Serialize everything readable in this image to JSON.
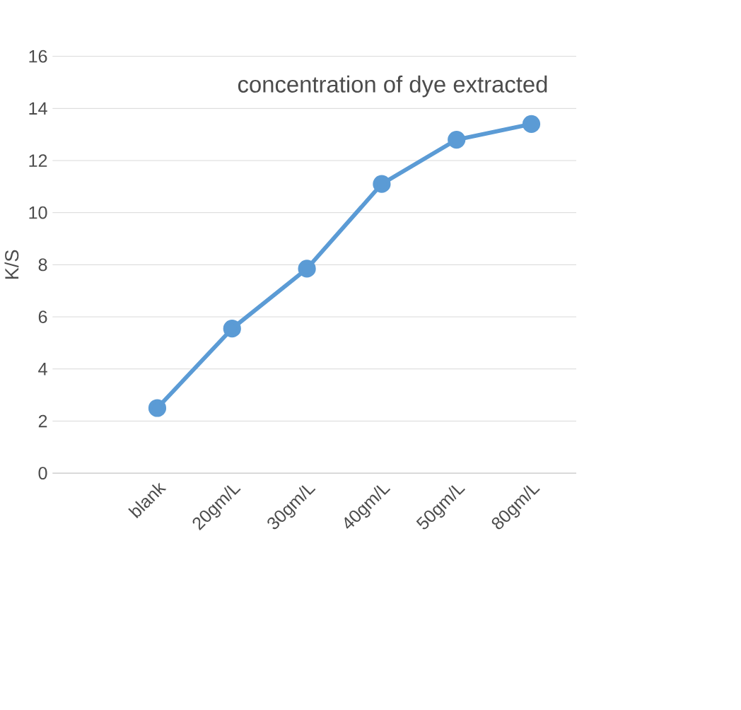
{
  "chart_data": {
    "type": "line",
    "title": "concentration of dye extracted",
    "ylabel": "K/S",
    "categories": [
      "blank",
      "20gm/L",
      "30gm/L",
      "40gm/L",
      "50gm/L",
      "80gm/L"
    ],
    "series": [
      {
        "color": "#5b9bd5",
        "values": [
          2.5,
          5.55,
          7.85,
          11.1,
          12.8,
          13.4
        ]
      }
    ],
    "ylim": [
      0,
      16
    ],
    "yticks": [
      0,
      2,
      4,
      6,
      8,
      10,
      12,
      14,
      16
    ],
    "grid": "y",
    "marker": "circle",
    "line_style": "solid"
  }
}
